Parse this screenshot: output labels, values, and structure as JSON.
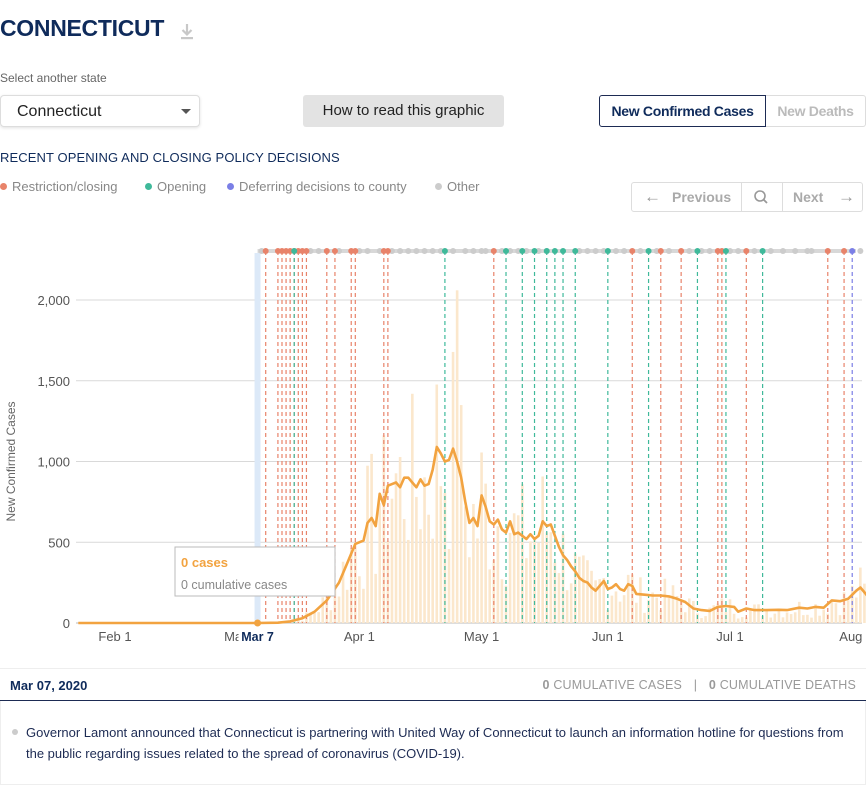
{
  "header": {
    "title": "CONNECTICUT"
  },
  "state_select": {
    "label": "Select another state",
    "value": "Connecticut"
  },
  "howto_button": "How to read this graphic",
  "metric_toggle": {
    "active": "New Confirmed Cases",
    "inactive": "New Deaths"
  },
  "policy": {
    "title": "RECENT OPENING AND CLOSING POLICY DECISIONS",
    "legend": [
      {
        "label": "Restriction/closing",
        "color": "#e8836a"
      },
      {
        "label": "Opening",
        "color": "#3fb99a"
      },
      {
        "label": "Deferring decisions to county",
        "color": "#7b7fe6"
      },
      {
        "label": "Other",
        "color": "#cccccc"
      }
    ]
  },
  "nav": {
    "previous": "Previous",
    "next": "Next"
  },
  "colors": {
    "line": "#f2a340",
    "bar": "#fbe7cc",
    "accent": "#0f2b5b"
  },
  "chart_data": {
    "type": "bar",
    "ylabel": "New Confirmed Cases",
    "ylim": [
      0,
      2300
    ],
    "yticks": [
      0,
      500,
      1000,
      1500,
      2000
    ],
    "ytick_labels": [
      "0",
      "500",
      "1,000",
      "1,500",
      "2,000"
    ],
    "xticks": [
      {
        "day": 0,
        "label": "Feb 1"
      },
      {
        "day": 29,
        "label": "Ma"
      },
      {
        "day": 60,
        "label": "Apr 1"
      },
      {
        "day": 90,
        "label": "May 1"
      },
      {
        "day": 121,
        "label": "Jun 1"
      },
      {
        "day": 151,
        "label": "Jul 1"
      },
      {
        "day": 182,
        "label": "Aug 1"
      }
    ],
    "x_range": [
      "Jan 23, 2020",
      "Aug 10, 2020"
    ],
    "series": [
      {
        "kind": "7-day average",
        "points": [
          [
            -9,
            0
          ],
          [
            35,
            0
          ],
          [
            40,
            2
          ],
          [
            43,
            10
          ],
          [
            46,
            30
          ],
          [
            49,
            70
          ],
          [
            52,
            140
          ],
          [
            55,
            250
          ],
          [
            57,
            370
          ],
          [
            59,
            490
          ],
          [
            61,
            510
          ],
          [
            62,
            620
          ],
          [
            63,
            650
          ],
          [
            64,
            600
          ],
          [
            65,
            800
          ],
          [
            66,
            730
          ],
          [
            67,
            850
          ],
          [
            68,
            860
          ],
          [
            69,
            870
          ],
          [
            70,
            840
          ],
          [
            71,
            900
          ],
          [
            72,
            900
          ],
          [
            73,
            870
          ],
          [
            74,
            840
          ],
          [
            75,
            890
          ],
          [
            76,
            850
          ],
          [
            77,
            860
          ],
          [
            78,
            950
          ],
          [
            79,
            1090
          ],
          [
            80,
            1050
          ],
          [
            81,
            1000
          ],
          [
            82,
            1010
          ],
          [
            83,
            1080
          ],
          [
            84,
            1000
          ],
          [
            85,
            900
          ],
          [
            86,
            750
          ],
          [
            87,
            620
          ],
          [
            88,
            650
          ],
          [
            89,
            600
          ],
          [
            90,
            790
          ],
          [
            91,
            720
          ],
          [
            92,
            630
          ],
          [
            93,
            610
          ],
          [
            94,
            640
          ],
          [
            95,
            580
          ],
          [
            96,
            560
          ],
          [
            97,
            630
          ],
          [
            98,
            550
          ],
          [
            99,
            560
          ],
          [
            100,
            540
          ],
          [
            101,
            520
          ],
          [
            102,
            550
          ],
          [
            103,
            520
          ],
          [
            104,
            540
          ],
          [
            105,
            630
          ],
          [
            106,
            600
          ],
          [
            107,
            610
          ],
          [
            108,
            540
          ],
          [
            109,
            470
          ],
          [
            110,
            420
          ],
          [
            111,
            390
          ],
          [
            112,
            350
          ],
          [
            113,
            320
          ],
          [
            114,
            280
          ],
          [
            115,
            260
          ],
          [
            116,
            250
          ],
          [
            117,
            220
          ],
          [
            118,
            200
          ],
          [
            119,
            230
          ],
          [
            120,
            260
          ],
          [
            121,
            210
          ],
          [
            122,
            220
          ],
          [
            123,
            240
          ],
          [
            124,
            210
          ],
          [
            125,
            200
          ],
          [
            126,
            240
          ],
          [
            127,
            230
          ],
          [
            128,
            180
          ],
          [
            130,
            175
          ],
          [
            132,
            170
          ],
          [
            134,
            170
          ],
          [
            136,
            165
          ],
          [
            138,
            150
          ],
          [
            140,
            130
          ],
          [
            142,
            90
          ],
          [
            144,
            80
          ],
          [
            146,
            75
          ],
          [
            148,
            100
          ],
          [
            150,
            105
          ],
          [
            152,
            100
          ],
          [
            153,
            70
          ],
          [
            155,
            90
          ],
          [
            157,
            80
          ],
          [
            160,
            80
          ],
          [
            163,
            82
          ],
          [
            165,
            80
          ],
          [
            168,
            95
          ],
          [
            170,
            90
          ],
          [
            172,
            100
          ],
          [
            174,
            95
          ],
          [
            176,
            140
          ],
          [
            178,
            135
          ],
          [
            180,
            150
          ],
          [
            182,
            200
          ],
          [
            183,
            220
          ],
          [
            185,
            160
          ],
          [
            186,
            120
          ],
          [
            187,
            130
          ],
          [
            188,
            135
          ],
          [
            189,
            90
          ],
          [
            190,
            90
          ]
        ]
      }
    ],
    "selected": {
      "day": 35,
      "label": "Mar 7",
      "cases": "0 cases",
      "cumulative": "0 cumulative cases"
    },
    "policy_markers": {
      "restriction": [
        37,
        40,
        41,
        42,
        43,
        44,
        45,
        46,
        47,
        52,
        54,
        58,
        59,
        66,
        67,
        93,
        127,
        134,
        139,
        148,
        149,
        155,
        175,
        179
      ],
      "opening": [
        44,
        81,
        96,
        100,
        103,
        106,
        108,
        110,
        113,
        121,
        131,
        143,
        150,
        159
      ],
      "county": [
        181
      ],
      "other": [
        36,
        48,
        50,
        55,
        60,
        62,
        65,
        68,
        70,
        72,
        74,
        76,
        78,
        80,
        83,
        86,
        88,
        90,
        91,
        95,
        97,
        99,
        101,
        104,
        106,
        114,
        116,
        118,
        120,
        123,
        125,
        129,
        133,
        136,
        141,
        144,
        146,
        151,
        153,
        157,
        161,
        164,
        167,
        170,
        171,
        183
      ]
    }
  },
  "footer": {
    "date": "Mar 07, 2020",
    "cum_cases_value": "0",
    "cum_cases_label": "CUMULATIVE CASES",
    "separator": "|",
    "cum_deaths_value": "0",
    "cum_deaths_label": "CUMULATIVE DEATHS"
  },
  "note": "Governor Lamont announced that Connecticut is partnering with United Way of Connecticut to launch an information hotline for questions from the public regarding issues related to the spread of coronavirus (COVID-19)."
}
